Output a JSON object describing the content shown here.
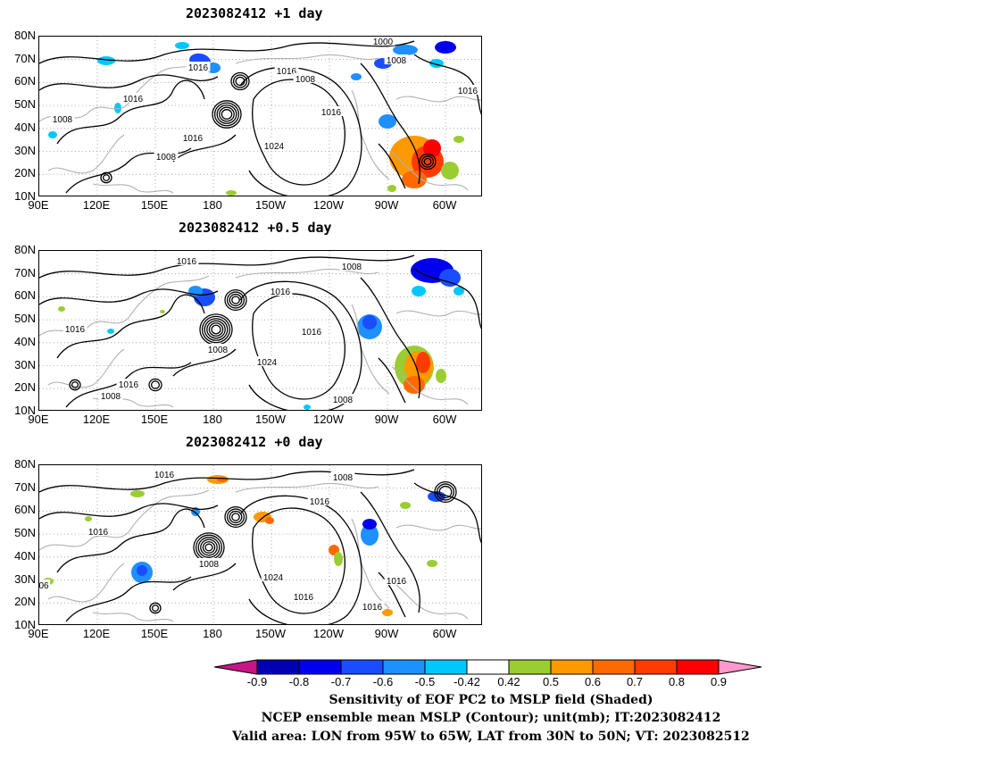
{
  "panels": [
    {
      "title": "2023082412 +1 day"
    },
    {
      "title": "2023082412 +0.5 day"
    },
    {
      "title": "2023082412 +0 day"
    }
  ],
  "lat_labels": [
    "80N",
    "70N",
    "60N",
    "50N",
    "40N",
    "30N",
    "20N",
    "10N"
  ],
  "lon_labels": [
    "90E",
    "120E",
    "150E",
    "180",
    "150W",
    "120W",
    "90W",
    "60W"
  ],
  "contour_labels": {
    "p0": [
      "1000",
      "1008",
      "1016",
      "1016",
      "1008",
      "1016",
      "1016",
      "1008",
      "1016",
      "1024",
      "1008",
      "1016"
    ],
    "p1": [
      "1016",
      "1008",
      "1016",
      "1016",
      "1016",
      "1008",
      "1024",
      "1016",
      "1008",
      "1008"
    ],
    "p2": [
      "1016",
      "1008",
      "1016",
      "1016",
      "1008",
      "1024",
      "1016",
      "1016",
      "06",
      "1016"
    ]
  },
  "colorbar": {
    "colors": [
      "#c71585",
      "#0000b3",
      "#0000ee",
      "#1a4dff",
      "#1e90ff",
      "#00c8ff",
      "#ffffff",
      "#9acd32",
      "#ff9900",
      "#ff6a00",
      "#ff3c00",
      "#ff0000",
      "#ff99cc"
    ],
    "labels": [
      "-0.9",
      "-0.8",
      "-0.7",
      "-0.6",
      "-0.5",
      "-0.42",
      "0.42",
      "0.5",
      "0.6",
      "0.7",
      "0.8",
      "0.9"
    ]
  },
  "captions": [
    "Sensitivity of EOF PC2 to MSLP field (Shaded)",
    "NCEP ensemble mean MSLP (Contour); unit(mb); IT:2023082412",
    "Valid area: LON from 95W to 65W, LAT from 30N to 50N; VT: 2023082512"
  ]
}
